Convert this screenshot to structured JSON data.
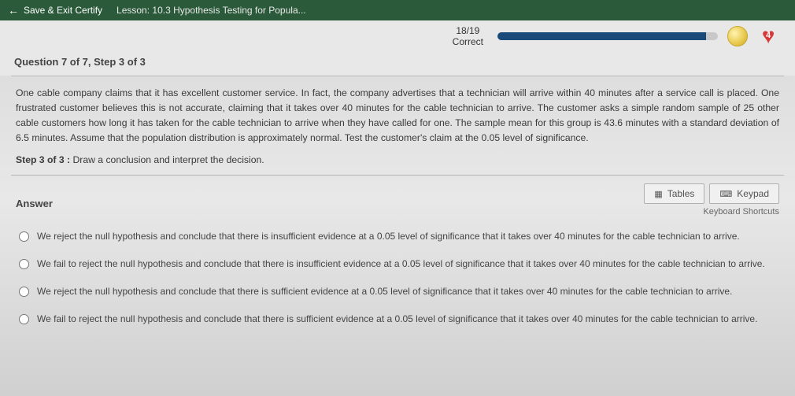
{
  "topbar": {
    "save_exit": "Save & Exit Certify",
    "lesson": "Lesson: 10.3 Hypothesis Testing for Popula..."
  },
  "progress": {
    "score": "18/19",
    "label": "Correct",
    "percent": 94.7,
    "heart_count": "4"
  },
  "question": {
    "header": "Question 7 of 7, Step 3 of 3",
    "body": "One cable company claims that it has excellent customer service. In fact, the company advertises that a technician will arrive within 40 minutes after a service call is placed. One frustrated customer believes this is not accurate, claiming that it takes over 40 minutes for the cable technician to arrive. The customer asks a simple random sample of 25 other cable customers how long it has taken for the cable technician to arrive when they have called for one. The sample mean for this group is 43.6 minutes with a standard deviation of 6.5 minutes. Assume that the population distribution is approximately normal. Test the customer's claim at the 0.05 level of significance.",
    "step_label": "Step 3 of 3 :",
    "step_text": " Draw a conclusion and interpret the decision."
  },
  "answer": {
    "label": "Answer",
    "tables_btn": "Tables",
    "keypad_btn": "Keypad",
    "kbd_shortcuts": "Keyboard Shortcuts"
  },
  "options": {
    "a": "We reject the null hypothesis and conclude that there is insufficient evidence at a 0.05 level of significance that it takes over 40 minutes for the cable technician to arrive.",
    "b": "We fail to reject the null hypothesis and conclude that there is insufficient evidence at a 0.05 level of significance that it takes over 40 minutes for the cable technician to arrive.",
    "c": "We reject the null hypothesis and conclude that there is sufficient evidence at a 0.05 level of significance that it takes over 40 minutes for the cable technician to arrive.",
    "d": "We fail to reject the null hypothesis and conclude that there is sufficient evidence at a 0.05 level of significance that it takes over 40 minutes for the cable technician to arrive."
  },
  "colors": {
    "topbar_bg": "#2a5a3a",
    "progress_fill": "#1a4a7a",
    "heart": "#d83838"
  }
}
